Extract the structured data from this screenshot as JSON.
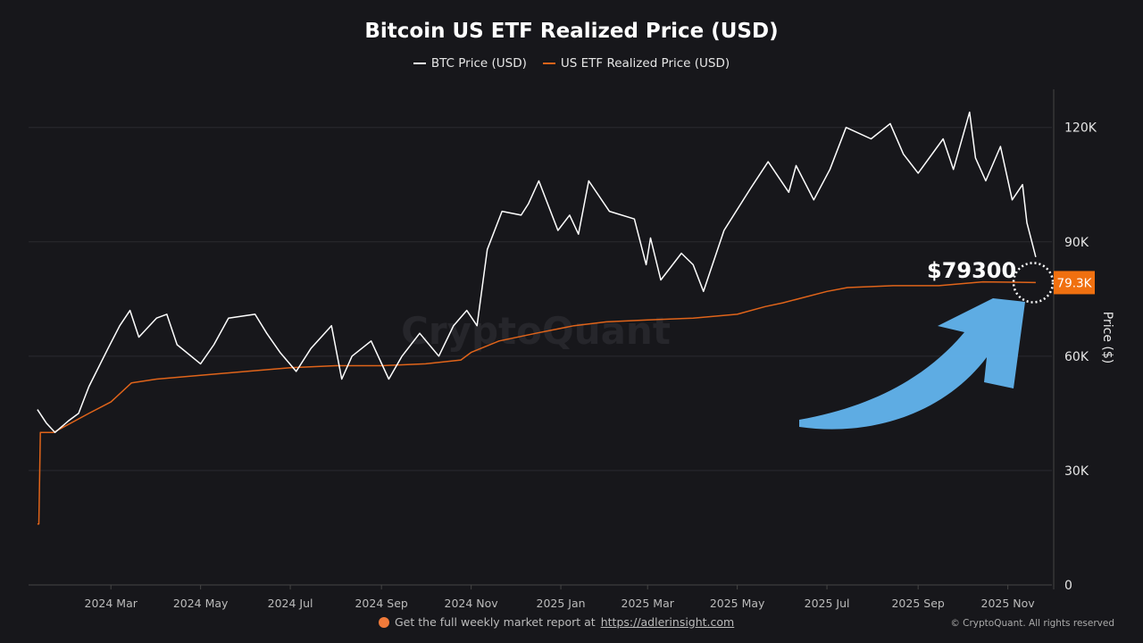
{
  "chart_data": {
    "type": "line",
    "title": "Bitcoin US ETF Realized Price (USD)",
    "ylabel": "Price ($)",
    "xlabel": "",
    "xlim": [
      "2024-01-05",
      "2025-12-01"
    ],
    "ylim": [
      0,
      130000
    ],
    "grid": true,
    "legend": "top-center",
    "y_ticks": [
      0,
      30000,
      60000,
      90000,
      120000
    ],
    "y_tick_labels": [
      "0",
      "30K",
      "60K",
      "90K",
      "120K"
    ],
    "x_ticks": [
      "2024-03-01",
      "2024-05-01",
      "2024-07-01",
      "2024-09-01",
      "2024-11-01",
      "2025-01-01",
      "2025-03-01",
      "2025-05-01",
      "2025-07-01",
      "2025-09-01",
      "2025-11-01"
    ],
    "x_tick_labels": [
      "2024 Mar",
      "2024 May",
      "2024 Jul",
      "2024 Sep",
      "2024 Nov",
      "2025 Jan",
      "2025 Mar",
      "2025 May",
      "2025 Jul",
      "2025 Sep",
      "2025 Nov"
    ],
    "series": [
      {
        "name": "BTC Price (USD)",
        "color": "#ffffff",
        "x": [
          "2024-01-11",
          "2024-01-17",
          "2024-01-23",
          "2024-02-01",
          "2024-02-08",
          "2024-02-15",
          "2024-02-28",
          "2024-03-07",
          "2024-03-14",
          "2024-03-20",
          "2024-04-01",
          "2024-04-08",
          "2024-04-15",
          "2024-05-01",
          "2024-05-10",
          "2024-05-20",
          "2024-06-07",
          "2024-06-15",
          "2024-06-24",
          "2024-07-05",
          "2024-07-15",
          "2024-07-29",
          "2024-08-05",
          "2024-08-12",
          "2024-08-25",
          "2024-09-06",
          "2024-09-15",
          "2024-09-27",
          "2024-10-10",
          "2024-10-20",
          "2024-10-29",
          "2024-11-05",
          "2024-11-12",
          "2024-11-22",
          "2024-12-05",
          "2024-12-10",
          "2024-12-17",
          "2024-12-30",
          "2025-01-07",
          "2025-01-13",
          "2025-01-20",
          "2025-02-03",
          "2025-02-20",
          "2025-02-28",
          "2025-03-03",
          "2025-03-10",
          "2025-03-24",
          "2025-04-01",
          "2025-04-08",
          "2025-04-22",
          "2025-05-10",
          "2025-05-22",
          "2025-06-05",
          "2025-06-10",
          "2025-06-22",
          "2025-07-03",
          "2025-07-14",
          "2025-07-31",
          "2025-08-13",
          "2025-08-22",
          "2025-09-01",
          "2025-09-18",
          "2025-09-25",
          "2025-10-06",
          "2025-10-10",
          "2025-10-17",
          "2025-10-27",
          "2025-11-04",
          "2025-11-11",
          "2025-11-14",
          "2025-11-20"
        ],
        "y": [
          46000,
          42500,
          40000,
          43000,
          45000,
          52000,
          62000,
          68000,
          72000,
          65000,
          70000,
          71000,
          63000,
          58000,
          63000,
          70000,
          71000,
          66000,
          61000,
          56000,
          62000,
          68000,
          54000,
          60000,
          64000,
          54000,
          60000,
          66000,
          60000,
          68000,
          72000,
          68000,
          88000,
          98000,
          97000,
          100000,
          106000,
          93000,
          97000,
          92000,
          106000,
          98000,
          96000,
          84000,
          91000,
          80000,
          87000,
          84000,
          77000,
          93000,
          104000,
          111000,
          103000,
          110000,
          101000,
          109000,
          120000,
          117000,
          121000,
          113000,
          108000,
          117000,
          109000,
          124000,
          112000,
          106000,
          115000,
          101000,
          105000,
          95000,
          86000
        ]
      },
      {
        "name": "US ETF Realized Price (USD)",
        "color": "#e0641a",
        "x": [
          "2024-01-11",
          "2024-01-12",
          "2024-01-13",
          "2024-01-22",
          "2024-02-15",
          "2024-03-01",
          "2024-03-15",
          "2024-04-01",
          "2024-05-01",
          "2024-06-01",
          "2024-07-01",
          "2024-08-01",
          "2024-09-01",
          "2024-10-01",
          "2024-10-25",
          "2024-11-01",
          "2024-11-20",
          "2024-12-15",
          "2025-01-10",
          "2025-02-01",
          "2025-03-01",
          "2025-04-01",
          "2025-05-01",
          "2025-05-20",
          "2025-06-01",
          "2025-07-01",
          "2025-07-15",
          "2025-08-15",
          "2025-09-15",
          "2025-10-15",
          "2025-11-20"
        ],
        "y": [
          16000,
          16000,
          40000,
          40000,
          45000,
          48000,
          53000,
          54000,
          55000,
          56000,
          57000,
          57500,
          57500,
          58000,
          59000,
          61000,
          64000,
          66000,
          68000,
          69000,
          69500,
          70000,
          71000,
          73000,
          74000,
          77000,
          78000,
          78500,
          78500,
          79500,
          79300
        ]
      }
    ],
    "annotations": {
      "callout_text": "$79300",
      "last_value_label": "79.3K",
      "last_value_color": "#f07010",
      "arrow_color": "#62b4ee"
    },
    "watermark": "CryptoQuant"
  },
  "footer": {
    "promo_text": "Get the full weekly market report at",
    "promo_link": "https://adlerinsight.com",
    "copyright": "© CryptoQuant. All rights reserved"
  }
}
